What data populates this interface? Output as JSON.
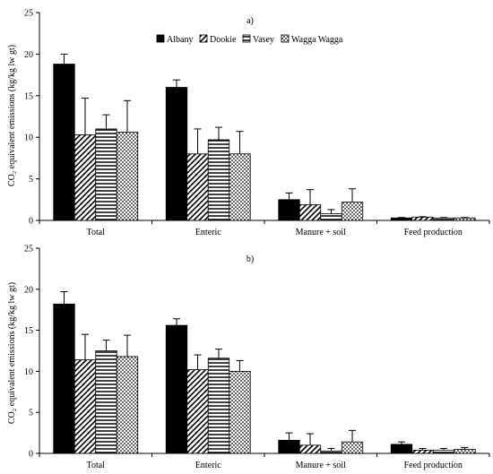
{
  "chart_data": [
    {
      "type": "bar",
      "title": "a)",
      "xlabel": "",
      "ylabel": "CO₂ equivalent emissions (kg/kg lw gt)",
      "ylim": [
        0,
        25
      ],
      "yticks": [
        0,
        5,
        10,
        15,
        20,
        25
      ],
      "grid": false,
      "legend_position": "top-center",
      "categories": [
        "Total",
        "Enteric",
        "Manure + soil",
        "Feed production"
      ],
      "series": [
        {
          "name": "Albany",
          "values": [
            18.8,
            16.0,
            2.5,
            0.3
          ],
          "errors": [
            1.2,
            0.9,
            0.8,
            0.05
          ]
        },
        {
          "name": "Dookie",
          "values": [
            10.3,
            8.0,
            1.9,
            0.4
          ],
          "errors": [
            4.4,
            3.0,
            1.8,
            0.05
          ]
        },
        {
          "name": "Vasey",
          "values": [
            11.0,
            9.7,
            0.8,
            0.3
          ],
          "errors": [
            1.7,
            1.5,
            0.5,
            0.05
          ]
        },
        {
          "name": "Wagga Wagga",
          "values": [
            10.6,
            8.0,
            2.2,
            0.3
          ],
          "errors": [
            3.8,
            2.7,
            1.6,
            0.05
          ]
        }
      ]
    },
    {
      "type": "bar",
      "title": "b)",
      "xlabel": "",
      "ylabel": "CO₂ equivalent emissions (kg/kg lw gt)",
      "ylim": [
        0,
        25
      ],
      "yticks": [
        0,
        5,
        10,
        15,
        20,
        25
      ],
      "grid": false,
      "categories": [
        "Total",
        "Enteric",
        "Manure + soil",
        "Feed production"
      ],
      "series": [
        {
          "name": "Albany",
          "values": [
            18.2,
            15.6,
            1.6,
            1.1
          ],
          "errors": [
            1.5,
            0.8,
            0.9,
            0.3
          ]
        },
        {
          "name": "Dookie",
          "values": [
            11.4,
            10.2,
            1.0,
            0.4
          ],
          "errors": [
            3.1,
            1.8,
            1.4,
            0.2
          ]
        },
        {
          "name": "Vasey",
          "values": [
            12.5,
            11.6,
            0.3,
            0.4
          ],
          "errors": [
            1.3,
            1.1,
            0.3,
            0.2
          ]
        },
        {
          "name": "Wagga Wagga",
          "values": [
            11.8,
            10.0,
            1.4,
            0.5
          ],
          "errors": [
            2.6,
            1.3,
            1.4,
            0.2
          ]
        }
      ]
    }
  ],
  "legend": {
    "entries": [
      {
        "name": "Albany",
        "pattern": "solid"
      },
      {
        "name": "Dookie",
        "pattern": "diagonal"
      },
      {
        "name": "Vasey",
        "pattern": "horizontal"
      },
      {
        "name": "Wagga Wagga",
        "pattern": "dots"
      }
    ]
  },
  "colors": {
    "bar": "#000000",
    "background": "#ffffff"
  }
}
